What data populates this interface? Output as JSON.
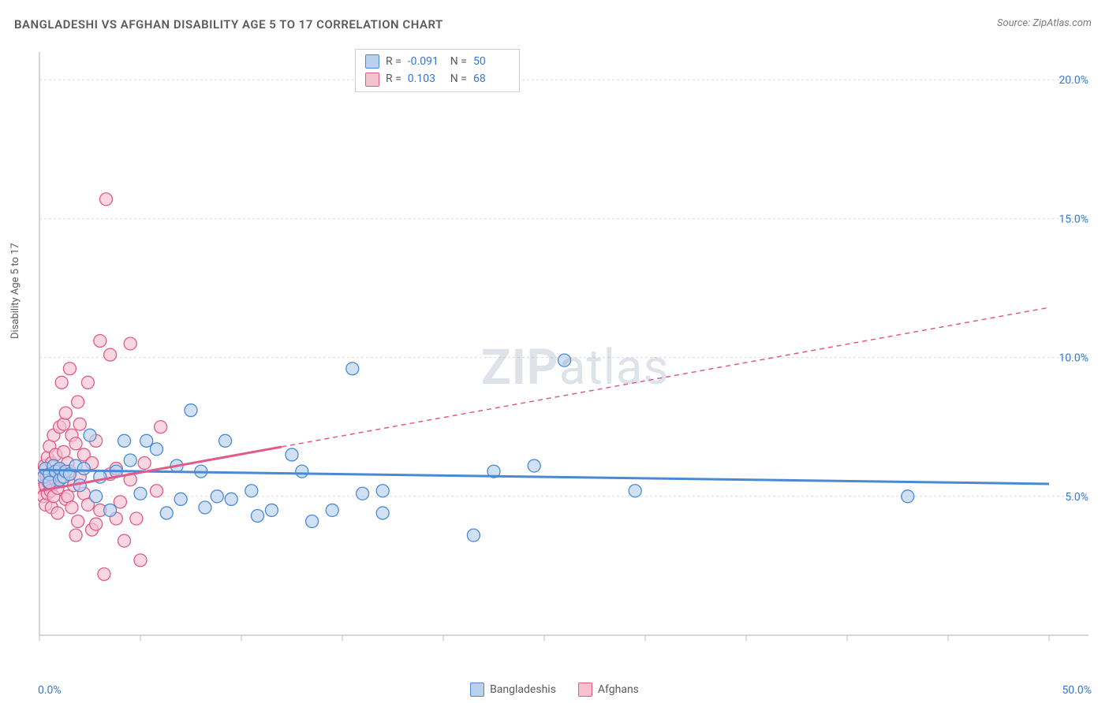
{
  "title": "BANGLADESHI VS AFGHAN DISABILITY AGE 5 TO 17 CORRELATION CHART",
  "source": "Source: ZipAtlas.com",
  "ylabel": "Disability Age 5 to 17",
  "watermark_zip": "ZIP",
  "watermark_atlas": "atlas",
  "chart": {
    "type": "scatter",
    "xlim": [
      0,
      50
    ],
    "ylim": [
      0,
      21
    ],
    "x_ticks": [
      0,
      5,
      10,
      15,
      20,
      25,
      30,
      35,
      40,
      45,
      50
    ],
    "y_ticks": [
      5,
      10,
      15,
      20
    ],
    "y_tick_labels": [
      "5.0%",
      "10.0%",
      "15.0%",
      "20.0%"
    ],
    "x_min_label": "0.0%",
    "x_max_label": "50.0%",
    "axis_color": "#bfbfbf",
    "grid_color": "#dcdcdc",
    "tick_label_color": "#3478d6",
    "background_color": "#ffffff",
    "marker_radius": 8,
    "marker_stroke_width": 1.3,
    "trend_line_width": 3,
    "trend_dash": "6,5"
  },
  "series": [
    {
      "name": "Bangladeshis",
      "fill": "#b8d1ef",
      "stroke": "#4a8ad4",
      "fill_opacity": 0.65,
      "trend": {
        "y_at_x0": 5.95,
        "y_at_xmax": 5.45,
        "solid_until_x": 50
      },
      "stats": {
        "R": "-0.091",
        "N": "50"
      },
      "points": [
        [
          0.2,
          5.7
        ],
        [
          0.3,
          6.0
        ],
        [
          0.5,
          5.8
        ],
        [
          0.5,
          5.5
        ],
        [
          0.7,
          6.1
        ],
        [
          0.8,
          5.9
        ],
        [
          1.0,
          5.6
        ],
        [
          1.0,
          6.0
        ],
        [
          1.2,
          5.7
        ],
        [
          1.3,
          5.9
        ],
        [
          1.5,
          5.8
        ],
        [
          1.8,
          6.1
        ],
        [
          2.0,
          5.4
        ],
        [
          2.2,
          6.0
        ],
        [
          2.5,
          7.2
        ],
        [
          2.8,
          5.0
        ],
        [
          3.0,
          5.7
        ],
        [
          3.5,
          4.5
        ],
        [
          3.8,
          5.9
        ],
        [
          4.2,
          7.0
        ],
        [
          4.5,
          6.3
        ],
        [
          5.0,
          5.1
        ],
        [
          5.3,
          7.0
        ],
        [
          5.8,
          6.7
        ],
        [
          6.3,
          4.4
        ],
        [
          6.8,
          6.1
        ],
        [
          7.0,
          4.9
        ],
        [
          7.5,
          8.1
        ],
        [
          8.0,
          5.9
        ],
        [
          8.2,
          4.6
        ],
        [
          8.8,
          5.0
        ],
        [
          9.2,
          7.0
        ],
        [
          9.5,
          4.9
        ],
        [
          10.5,
          5.2
        ],
        [
          10.8,
          4.3
        ],
        [
          11.5,
          4.5
        ],
        [
          12.5,
          6.5
        ],
        [
          13.0,
          5.9
        ],
        [
          13.5,
          4.1
        ],
        [
          14.5,
          4.5
        ],
        [
          15.5,
          9.6
        ],
        [
          16.0,
          5.1
        ],
        [
          17.0,
          4.4
        ],
        [
          17.0,
          5.2
        ],
        [
          21.5,
          3.6
        ],
        [
          22.5,
          5.9
        ],
        [
          24.5,
          6.1
        ],
        [
          26.0,
          9.9
        ],
        [
          29.5,
          5.2
        ],
        [
          43.0,
          5.0
        ]
      ]
    },
    {
      "name": "Afghans",
      "fill": "#f6c2cf",
      "stroke": "#e05a8a",
      "fill_opacity": 0.65,
      "trend": {
        "y_at_x0": 5.2,
        "y_at_xmax": 11.8,
        "solid_until_x": 12
      },
      "stats": {
        "R": "0.103",
        "N": "68"
      },
      "points": [
        [
          0.1,
          5.6
        ],
        [
          0.15,
          5.3
        ],
        [
          0.2,
          5.9
        ],
        [
          0.2,
          5.0
        ],
        [
          0.25,
          6.1
        ],
        [
          0.3,
          5.4
        ],
        [
          0.3,
          4.7
        ],
        [
          0.35,
          5.7
        ],
        [
          0.4,
          6.4
        ],
        [
          0.4,
          5.1
        ],
        [
          0.45,
          5.5
        ],
        [
          0.5,
          5.8
        ],
        [
          0.5,
          6.8
        ],
        [
          0.55,
          5.2
        ],
        [
          0.6,
          4.6
        ],
        [
          0.6,
          6.2
        ],
        [
          0.7,
          5.0
        ],
        [
          0.7,
          7.2
        ],
        [
          0.8,
          5.6
        ],
        [
          0.8,
          6.5
        ],
        [
          0.9,
          5.3
        ],
        [
          0.9,
          4.4
        ],
        [
          1.0,
          7.5
        ],
        [
          1.0,
          6.0
        ],
        [
          1.1,
          5.7
        ],
        [
          1.1,
          9.1
        ],
        [
          1.2,
          6.6
        ],
        [
          1.2,
          7.6
        ],
        [
          1.3,
          4.9
        ],
        [
          1.3,
          8.0
        ],
        [
          1.4,
          6.2
        ],
        [
          1.4,
          5.0
        ],
        [
          1.5,
          9.6
        ],
        [
          1.5,
          5.9
        ],
        [
          1.6,
          4.6
        ],
        [
          1.6,
          7.2
        ],
        [
          1.7,
          5.4
        ],
        [
          1.8,
          6.9
        ],
        [
          1.8,
          3.6
        ],
        [
          1.9,
          4.1
        ],
        [
          1.9,
          8.4
        ],
        [
          2.0,
          7.6
        ],
        [
          2.0,
          5.7
        ],
        [
          2.2,
          5.1
        ],
        [
          2.2,
          6.5
        ],
        [
          2.4,
          4.7
        ],
        [
          2.4,
          9.1
        ],
        [
          2.6,
          6.2
        ],
        [
          2.6,
          3.8
        ],
        [
          2.8,
          4.0
        ],
        [
          2.8,
          7.0
        ],
        [
          3.0,
          4.5
        ],
        [
          3.0,
          10.6
        ],
        [
          3.2,
          2.2
        ],
        [
          3.3,
          15.7
        ],
        [
          3.5,
          5.8
        ],
        [
          3.5,
          10.1
        ],
        [
          3.8,
          4.2
        ],
        [
          3.8,
          6.0
        ],
        [
          4.0,
          4.8
        ],
        [
          4.2,
          3.4
        ],
        [
          4.5,
          5.6
        ],
        [
          4.5,
          10.5
        ],
        [
          4.8,
          4.2
        ],
        [
          5.0,
          2.7
        ],
        [
          5.2,
          6.2
        ],
        [
          5.8,
          5.2
        ],
        [
          6.0,
          7.5
        ]
      ]
    }
  ],
  "stats_box": {
    "r_label": "R =",
    "n_label": "N ="
  },
  "bottom_legend": {
    "label_0": "Bangladeshis",
    "label_1": "Afghans"
  }
}
